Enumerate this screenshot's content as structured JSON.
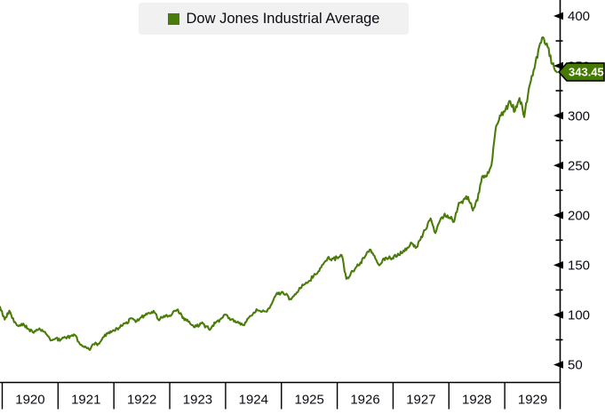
{
  "legend": {
    "label": "Dow Jones Industrial Average"
  },
  "last_price": {
    "value": "343.45"
  },
  "y_axis": {
    "labels": [
      400,
      350,
      300,
      250,
      200,
      150,
      100,
      50
    ],
    "minor_ticks": [
      375,
      325,
      275,
      225,
      175,
      125,
      75
    ]
  },
  "x_axis": {
    "years": [
      "1920",
      "1921",
      "1922",
      "1923",
      "1924",
      "1925",
      "1926",
      "1927",
      "1928",
      "1929"
    ]
  },
  "colors": {
    "line": "#4A7C0A",
    "legend_swatch": "#4A7C0A",
    "legend_bg": "#F1F1F1",
    "tag_bg": "#457A00",
    "tag_border": "#000000",
    "tag_text": "#FFFFFF",
    "axis_line": "#000000",
    "label_text": "#0B0B14",
    "background": "#FFFFFF"
  },
  "chart_data": {
    "type": "line",
    "title": "Dow Jones Industrial Average",
    "xlabel": "",
    "ylabel": "",
    "grid": false,
    "legend_position": "top",
    "x_start": "1920-01",
    "x_end": "1929-10",
    "frequency": "monthly",
    "x_tick_labels": [
      "1920",
      "1921",
      "1922",
      "1923",
      "1924",
      "1925",
      "1926",
      "1927",
      "1928",
      "1929"
    ],
    "y_ticks": [
      50,
      100,
      150,
      200,
      250,
      300,
      350,
      400
    ],
    "ylim": [
      31,
      416
    ],
    "last_value": 343.45,
    "series": [
      {
        "name": "Dow Jones Industrial Average",
        "color": "#4A7C0A",
        "values": [
          108,
          95,
          104,
          93,
          88,
          91,
          86,
          83,
          85,
          85,
          80,
          74,
          76,
          75,
          77,
          78,
          80,
          71,
          68,
          65,
          71,
          71,
          78,
          81,
          83,
          86,
          89,
          92,
          96,
          93,
          97,
          100,
          102,
          103,
          95,
          99,
          98,
          103,
          105,
          97,
          95,
          89,
          88,
          92,
          88,
          86,
          92,
          95,
          100,
          97,
          94,
          91,
          90,
          96,
          101,
          105,
          104,
          103,
          111,
          120,
          122,
          121,
          116,
          120,
          127,
          130,
          134,
          139,
          143,
          151,
          157,
          156,
          157,
          160,
          136,
          142,
          147,
          152,
          158,
          165,
          159,
          150,
          156,
          157,
          157,
          161,
          163,
          167,
          172,
          168,
          178,
          186,
          197,
          182,
          194,
          201,
          198,
          194,
          212,
          215,
          219,
          204,
          215,
          239,
          240,
          251,
          290,
          300,
          306,
          314,
          304,
          318,
          299,
          328,
          346,
          365,
          378,
          368,
          352,
          343.45
        ]
      }
    ]
  }
}
